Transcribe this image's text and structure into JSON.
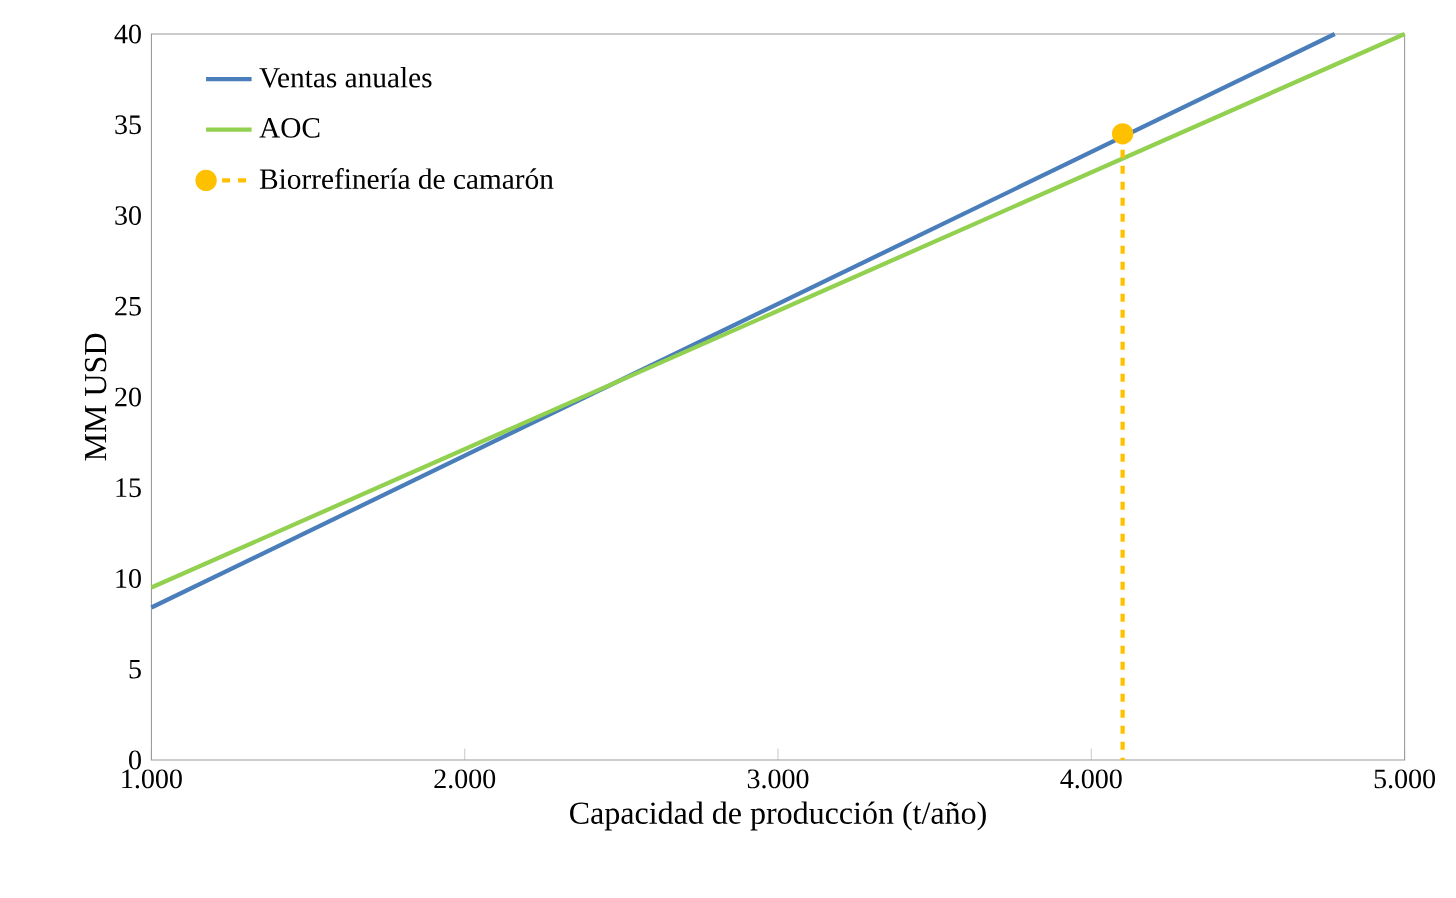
{
  "chart_data": {
    "type": "line",
    "xlabel": "Capacidad de producción (t/año)",
    "ylabel": "MM USD",
    "xlim": [
      1000,
      5000
    ],
    "ylim": [
      0,
      40
    ],
    "xticks": [
      {
        "value": 1000,
        "label": "1.000"
      },
      {
        "value": 2000,
        "label": "2.000"
      },
      {
        "value": 3000,
        "label": "3.000"
      },
      {
        "value": 4000,
        "label": "4.000"
      },
      {
        "value": 5000,
        "label": "5.000"
      }
    ],
    "yticks": [
      0,
      5,
      10,
      15,
      20,
      25,
      30,
      35,
      40
    ],
    "grid": false,
    "legend": "top left",
    "series": [
      {
        "name": "Ventas anuales",
        "color": "#4a7ebb",
        "x": [
          1000,
          4777
        ],
        "values": [
          8.4,
          40
        ],
        "line_style": "solid",
        "marker": "none"
      },
      {
        "name": "AOC",
        "color": "#92d050",
        "x": [
          1000,
          5000
        ],
        "values": [
          9.5,
          40
        ],
        "line_style": "solid",
        "marker": "none"
      },
      {
        "name": "Biorrefinería de camarón",
        "color": "#ffc000",
        "x": [
          4100,
          4100
        ],
        "values": [
          34.5,
          0
        ],
        "line_style": "dashed",
        "marker": "circle"
      }
    ]
  }
}
